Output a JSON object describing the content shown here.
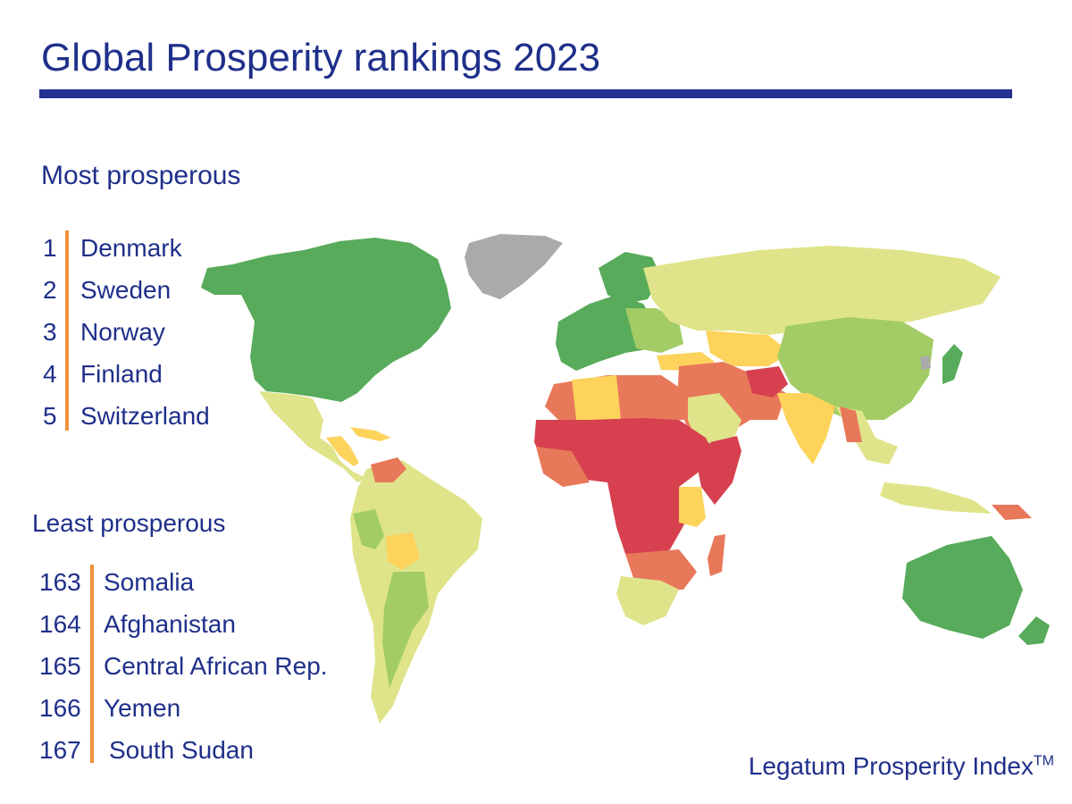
{
  "title": "Global Prosperity rankings 2023",
  "most": {
    "heading": "Most prosperous",
    "items": [
      {
        "rank": "1",
        "name": "Denmark"
      },
      {
        "rank": "2",
        "name": "Sweden"
      },
      {
        "rank": "3",
        "name": "Norway"
      },
      {
        "rank": "4",
        "name": "Finland"
      },
      {
        "rank": "5",
        "name": "Switzerland"
      }
    ]
  },
  "least": {
    "heading": "Least prosperous",
    "items": [
      {
        "rank": "163",
        "name": "Somalia"
      },
      {
        "rank": "164",
        "name": "Afghanistan"
      },
      {
        "rank": "165",
        "name": "Central African Rep."
      },
      {
        "rank": "166",
        "name": "Yemen"
      },
      {
        "rank": "167",
        "name": "South Sudan"
      }
    ]
  },
  "credit": {
    "text": "Legatum Prosperity Index",
    "mark": "TM"
  },
  "colors": {
    "brand": "#1f2f8a",
    "rule": "#24318f",
    "accent_bar": "#f0913b",
    "very_high": "#57ab5a",
    "high": "#a3cc66",
    "mid_high": "#dfe48a",
    "mid": "#fdd35c",
    "low": "#e8785a",
    "very_low": "#d6404f",
    "no_data": "#aaaaaa"
  }
}
